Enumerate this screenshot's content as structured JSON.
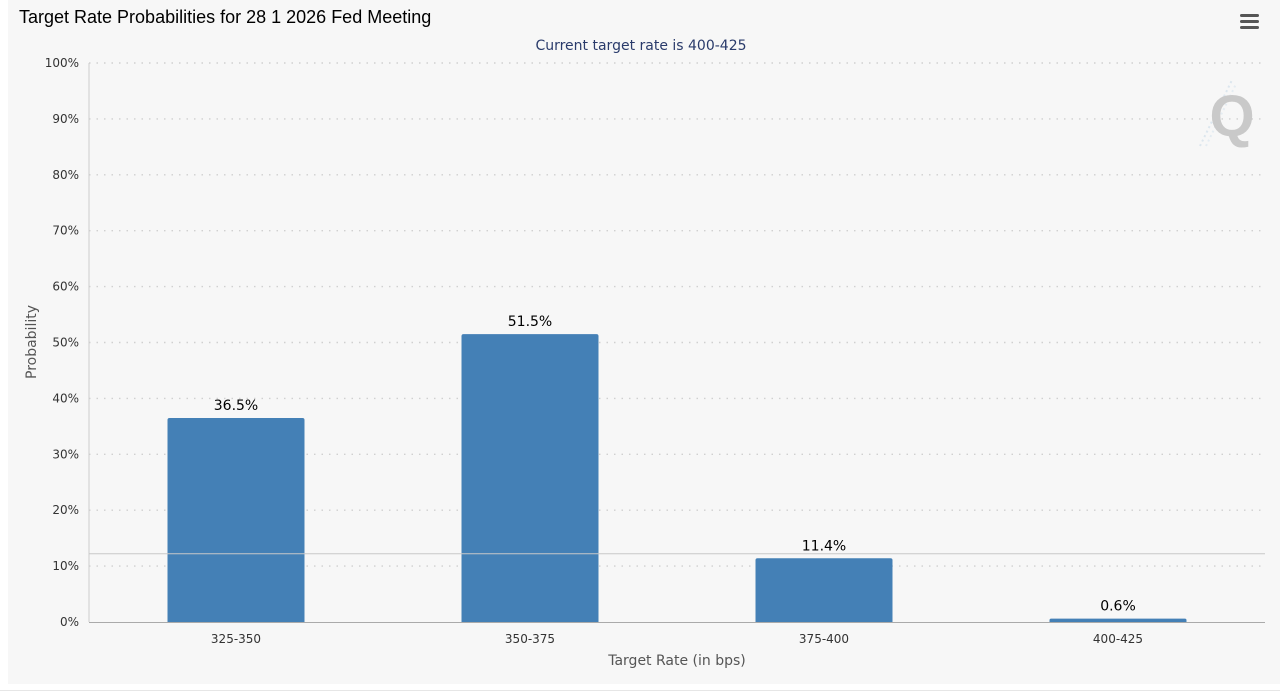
{
  "header": {
    "title": "Target Rate Probabilities for 28 1 2026 Fed Meeting",
    "menu_icon": "hamburger-menu-icon"
  },
  "watermark": {
    "text": "Q"
  },
  "colors": {
    "bar": "#4480b6",
    "panel_background": "#f7f7f7",
    "subtitle": "#2a3b6b"
  },
  "chart_data": {
    "type": "bar",
    "title": "Target Rate Probabilities for 28 1 2026 Fed Meeting",
    "subtitle": "Current target rate is 400-425",
    "xlabel": "Target Rate (in bps)",
    "ylabel": "Probability",
    "categories": [
      "325-350",
      "350-375",
      "375-400",
      "400-425"
    ],
    "values": [
      36.5,
      51.5,
      11.4,
      0.6
    ],
    "data_labels": [
      "36.5%",
      "51.5%",
      "11.4%",
      "0.6%"
    ],
    "ylim": [
      0,
      100
    ],
    "yticks": [
      0,
      10,
      20,
      30,
      40,
      50,
      60,
      70,
      80,
      90,
      100
    ],
    "ytick_labels": [
      "0%",
      "10%",
      "20%",
      "30%",
      "40%",
      "50%",
      "60%",
      "70%",
      "80%",
      "90%",
      "100%"
    ],
    "reference_line": 12.2,
    "grid": true,
    "legend": "none"
  }
}
